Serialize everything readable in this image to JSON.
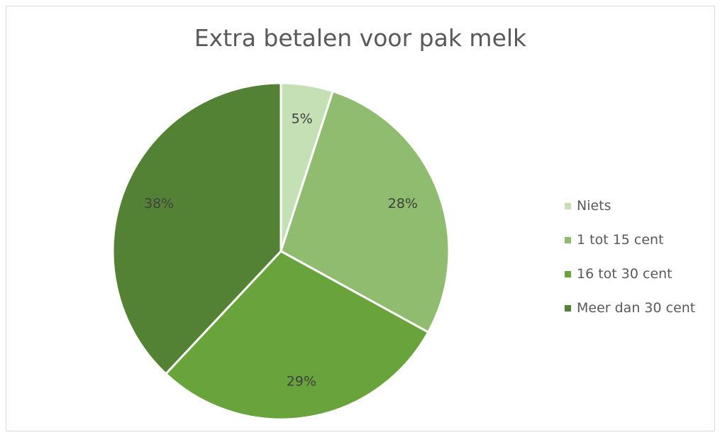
{
  "chart_data": {
    "type": "pie",
    "title": "Extra betalen voor pak melk",
    "categories": [
      "Niets",
      "1 tot 15 cent",
      "16 tot 30 cent",
      "Meer dan 30 cent"
    ],
    "values": [
      5,
      28,
      29,
      38
    ],
    "labels": [
      "5%",
      "28%",
      "29%",
      "38%"
    ],
    "colors": [
      "#c5e0b4",
      "#8fbc6e",
      "#69a33b",
      "#548235"
    ],
    "legend_position": "right"
  }
}
